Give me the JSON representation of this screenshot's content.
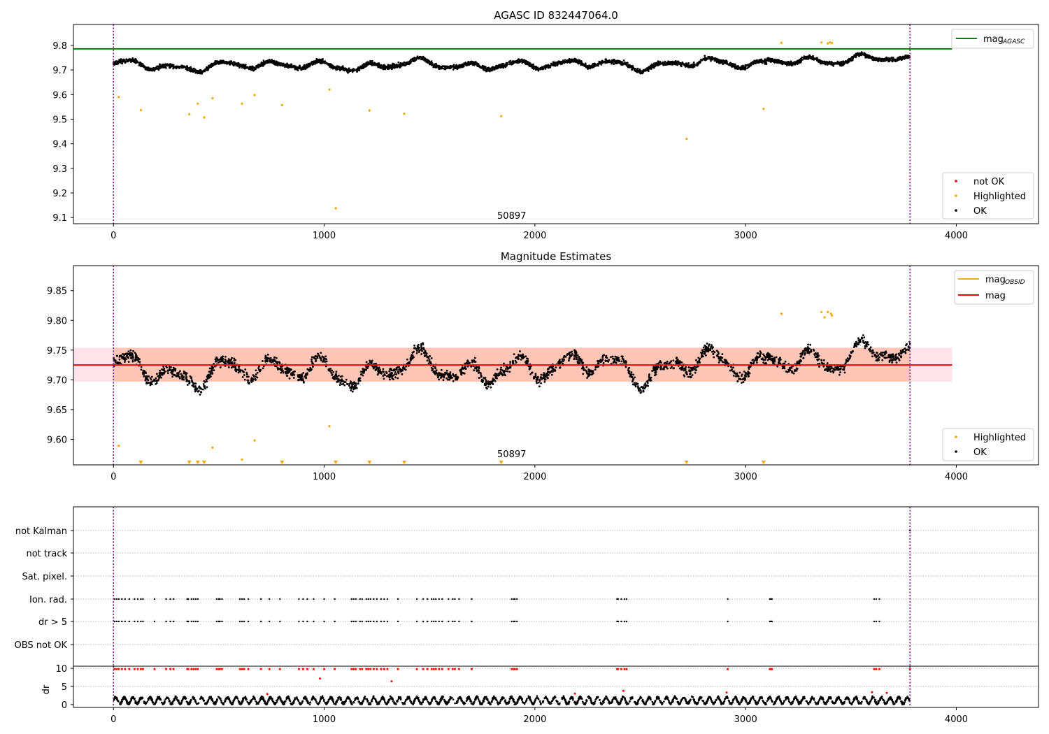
{
  "chart_data": [
    {
      "type": "scatter",
      "title": "AGASC ID 832447064.0",
      "xlim": [
        -190,
        4390
      ],
      "ylim": [
        9.075,
        9.885
      ],
      "x_ticks": [
        0,
        1000,
        2000,
        3000,
        4000
      ],
      "y_ticks": [
        9.1,
        9.2,
        9.3,
        9.4,
        9.5,
        9.6,
        9.7,
        9.8
      ],
      "vlines": [
        0,
        3780
      ],
      "hline": {
        "value": 9.786,
        "xrange": [
          -190,
          3980
        ],
        "color": "#008000"
      },
      "annotation": {
        "text": "50897",
        "x": 1890,
        "y": 9.1
      },
      "legends": [
        {
          "position": "top-right",
          "entries": [
            {
              "label": "mag",
              "sub": "AGASC",
              "style": "line",
              "color": "#008000"
            }
          ]
        },
        {
          "position": "bottom-right",
          "entries": [
            {
              "label": "not OK",
              "style": "dot",
              "color": "#ff0000"
            },
            {
              "label": "Highlighted",
              "style": "dot",
              "color": "#ffa500"
            },
            {
              "label": "OK",
              "style": "dot",
              "color": "#000000"
            }
          ]
        }
      ],
      "series": [
        {
          "name": "OK",
          "color": "#000000",
          "n_points": 3600,
          "x_range": [
            0,
            3780
          ]
        },
        {
          "name": "Highlighted",
          "color": "#ffa500",
          "x": [
            25,
            130,
            360,
            400,
            430,
            470,
            610,
            670,
            800,
            1025,
            1055,
            1215,
            1380,
            1840,
            2720,
            3085,
            3170,
            3360,
            3390,
            3400,
            3410
          ],
          "y": [
            9.59,
            9.537,
            9.52,
            9.563,
            9.507,
            9.585,
            9.563,
            9.598,
            9.557,
            9.62,
            9.138,
            9.535,
            9.522,
            9.512,
            9.42,
            9.542,
            9.81,
            9.812,
            9.808,
            9.812,
            9.81
          ]
        }
      ]
    },
    {
      "type": "scatter",
      "title": "Magnitude Estimates",
      "xlim": [
        -190,
        4390
      ],
      "ylim": [
        9.557,
        9.892
      ],
      "x_ticks": [
        0,
        1000,
        2000,
        3000,
        4000
      ],
      "y_ticks": [
        9.6,
        9.65,
        9.7,
        9.75,
        9.8,
        9.85
      ],
      "y_tick_labels": [
        "9.60",
        "9.65",
        "9.70",
        "9.75",
        "9.80",
        "9.85"
      ],
      "vlines": [
        0,
        3780
      ],
      "hline": {
        "value": 9.725,
        "xrange": [
          -190,
          3980
        ],
        "color": "#ff0000"
      },
      "bands": [
        {
          "x0": -190,
          "x1": 3980,
          "y0": 9.697,
          "y1": 9.754,
          "color": "#ffc0cb",
          "opacity": 0.45
        },
        {
          "x0": 0,
          "x1": 3780,
          "y0": 9.697,
          "y1": 9.754,
          "color": "#ffa07a",
          "opacity": 0.45
        }
      ],
      "annotation": {
        "text": "50897",
        "x": 1890,
        "y": 9.57
      },
      "legends": [
        {
          "position": "top-right",
          "entries": [
            {
              "label": "mag",
              "sub": "OBSID",
              "style": "line",
              "color": "#ffa500"
            },
            {
              "label": "mag",
              "style": "line",
              "color": "#ff0000"
            }
          ]
        },
        {
          "position": "bottom-right",
          "entries": [
            {
              "label": "Highlighted",
              "style": "dot",
              "color": "#ffa500"
            },
            {
              "label": "OK",
              "style": "dot",
              "color": "#000000"
            }
          ]
        }
      ],
      "series": [
        {
          "name": "OK",
          "color": "#000000",
          "n_points": 2400,
          "x_range": [
            0,
            3780
          ]
        },
        {
          "name": "Highlighted",
          "color": "#ffa500",
          "x": [
            25,
            470,
            610,
            670,
            1025,
            3170,
            3360,
            3375,
            3390,
            3405,
            3410
          ],
          "y": [
            9.589,
            9.586,
            9.566,
            9.598,
            9.622,
            9.811,
            9.814,
            9.805,
            9.814,
            9.811,
            9.808
          ]
        },
        {
          "name": "out-of-range",
          "color": "#ffa500",
          "marker": "triangle-down",
          "x": [
            130,
            360,
            400,
            430,
            800,
            1055,
            1215,
            1380,
            1840,
            2720,
            3085
          ]
        }
      ]
    },
    {
      "type": "scatter",
      "title": "",
      "xlim": [
        -190,
        4390
      ],
      "vlines": [
        0,
        3780
      ],
      "categories": [
        "not Kalman",
        "not track",
        "Sat. pixel.",
        "Ion. rad.",
        "dr > 5",
        "OBS not OK"
      ],
      "flag_x": [
        5,
        15,
        25,
        40,
        55,
        75,
        100,
        115,
        130,
        140,
        195,
        250,
        270,
        285,
        350,
        355,
        370,
        380,
        390,
        400,
        490,
        500,
        505,
        515,
        600,
        610,
        620,
        640,
        700,
        740,
        790,
        880,
        900,
        920,
        950,
        1000,
        1050,
        1130,
        1140,
        1150,
        1170,
        1180,
        1200,
        1210,
        1220,
        1235,
        1250,
        1270,
        1285,
        1300,
        1350,
        1440,
        1470,
        1490,
        1510,
        1520,
        1530,
        1545,
        1560,
        1590,
        1610,
        1620,
        1640,
        1700,
        1890,
        1900,
        1905,
        1915,
        2390,
        2395,
        2410,
        2425,
        2435,
        2915,
        3115,
        3120,
        3125,
        3610,
        3620,
        3635
      ],
      "series": [
        {
          "name": "dr",
          "color": "#000000",
          "n_points": 3000,
          "x_range": [
            0,
            3780
          ],
          "range": [
            0,
            3
          ]
        },
        {
          "name": "dr > 5",
          "color": "#ff0000",
          "x": [
            5,
            15,
            25,
            40,
            55,
            75,
            100,
            115,
            130,
            140,
            195,
            250,
            270,
            285,
            350,
            355,
            370,
            380,
            390,
            400,
            490,
            500,
            505,
            515,
            600,
            610,
            620,
            640,
            700,
            740,
            790,
            880,
            900,
            920,
            950,
            1000,
            1050,
            1130,
            1140,
            1150,
            1170,
            1180,
            1200,
            1210,
            1220,
            1235,
            1250,
            1270,
            1285,
            1300,
            1350,
            1440,
            1470,
            1490,
            1510,
            1520,
            1530,
            1545,
            1560,
            1590,
            1610,
            1620,
            1640,
            1700,
            1890,
            1900,
            1905,
            1915,
            2390,
            2395,
            2410,
            2425,
            2435,
            2915,
            3115,
            3120,
            3125,
            3610,
            3620,
            3635,
            3780,
            980,
            1320,
            730,
            2190,
            2420,
            2910,
            3600,
            3670
          ],
          "y": [
            9.8,
            9.8,
            9.8,
            9.8,
            9.8,
            9.8,
            9.8,
            9.8,
            9.8,
            9.8,
            9.8,
            9.8,
            9.8,
            9.8,
            9.8,
            9.8,
            9.8,
            9.8,
            9.8,
            9.8,
            9.8,
            9.8,
            9.8,
            9.8,
            9.8,
            9.8,
            9.8,
            9.8,
            9.8,
            9.8,
            9.8,
            9.8,
            9.8,
            9.8,
            9.8,
            9.8,
            9.8,
            9.8,
            9.8,
            9.8,
            9.8,
            9.8,
            9.8,
            9.8,
            9.8,
            9.8,
            9.8,
            9.8,
            9.8,
            9.8,
            9.8,
            9.8,
            9.8,
            9.8,
            9.8,
            9.8,
            9.8,
            9.8,
            9.8,
            9.8,
            9.8,
            9.8,
            9.8,
            9.8,
            9.8,
            9.8,
            9.8,
            9.8,
            9.8,
            9.8,
            9.8,
            9.8,
            9.8,
            9.8,
            9.8,
            9.8,
            9.8,
            9.8,
            9.8,
            9.8,
            9.8,
            7.2,
            6.4,
            2.9,
            3.0,
            3.8,
            3.3,
            3.4,
            3.2
          ]
        }
      ]
    },
    {
      "type": "scatter",
      "ylabel": "dr",
      "xlim": [
        -190,
        4390
      ],
      "ylim": [
        -0.8,
        10.6
      ],
      "x_ticks": [
        0,
        1000,
        2000,
        3000,
        4000
      ],
      "y_ticks": [
        0,
        5,
        10
      ]
    }
  ]
}
